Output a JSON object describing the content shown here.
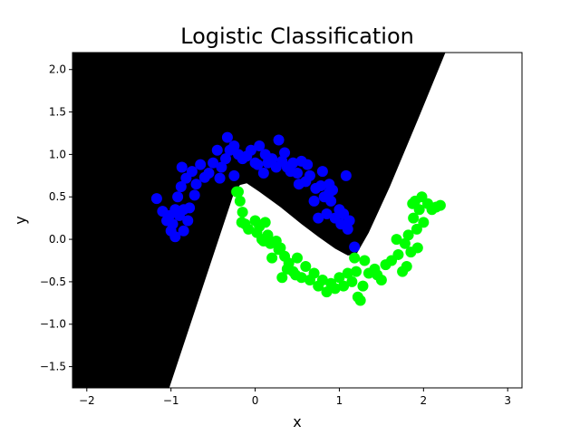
{
  "chart_data": {
    "type": "scatter",
    "title": "Logistic Classification",
    "xlabel": "x",
    "ylabel": "y",
    "xlim": [
      -2.17,
      3.17
    ],
    "ylim": [
      -1.75,
      2.2
    ],
    "x_ticks": [
      "−2",
      "−1",
      "0",
      "1",
      "2",
      "3"
    ],
    "y_ticks": [
      "−1.5",
      "−1.0",
      "−0.5",
      "0.0",
      "0.5",
      "1.0",
      "1.5",
      "2.0"
    ],
    "legend": "none",
    "grid": false,
    "background_regions": {
      "class_0_color": "#000000",
      "class_1_color": "#ffffff",
      "boundary": [
        [
          -1.02,
          -1.75
        ],
        [
          -0.25,
          0.55
        ],
        [
          -0.18,
          0.64
        ],
        [
          -0.1,
          0.66
        ],
        [
          0.05,
          0.56
        ],
        [
          0.3,
          0.38
        ],
        [
          0.55,
          0.18
        ],
        [
          0.75,
          0.03
        ],
        [
          0.95,
          -0.11
        ],
        [
          1.1,
          -0.19
        ],
        [
          1.2,
          -0.18
        ],
        [
          1.35,
          0.08
        ],
        [
          1.6,
          0.62
        ],
        [
          1.95,
          1.45
        ],
        [
          2.26,
          2.2
        ]
      ]
    },
    "series": [
      {
        "color": "#0000ff",
        "points": [
          [
            -1.17,
            0.48
          ],
          [
            -1.1,
            0.33
          ],
          [
            -1.05,
            0.22
          ],
          [
            -0.98,
            0.18
          ],
          [
            -0.95,
            0.03
          ],
          [
            -1.0,
            0.1
          ],
          [
            -0.9,
            0.28
          ],
          [
            -0.85,
            0.1
          ],
          [
            -0.8,
            0.22
          ],
          [
            -0.78,
            0.37
          ],
          [
            -0.85,
            0.35
          ],
          [
            -0.92,
            0.5
          ],
          [
            -0.88,
            0.62
          ],
          [
            -0.82,
            0.72
          ],
          [
            -0.87,
            0.85
          ],
          [
            -0.75,
            0.8
          ],
          [
            -0.7,
            0.65
          ],
          [
            -0.65,
            0.88
          ],
          [
            -0.55,
            0.78
          ],
          [
            -0.5,
            0.9
          ],
          [
            -0.45,
            1.05
          ],
          [
            -0.4,
            0.85
          ],
          [
            -0.35,
            0.95
          ],
          [
            -0.3,
            1.05
          ],
          [
            -0.25,
            1.1
          ],
          [
            -0.33,
            1.2
          ],
          [
            -0.2,
            1.0
          ],
          [
            -0.15,
            0.95
          ],
          [
            -0.25,
            0.75
          ],
          [
            -0.05,
            1.05
          ],
          [
            0.0,
            0.9
          ],
          [
            0.05,
            1.1
          ],
          [
            0.1,
            0.78
          ],
          [
            0.15,
            0.9
          ],
          [
            0.2,
            0.95
          ],
          [
            0.25,
            0.85
          ],
          [
            0.28,
            1.17
          ],
          [
            0.32,
            0.92
          ],
          [
            0.35,
            1.02
          ],
          [
            0.38,
            0.85
          ],
          [
            0.45,
            0.9
          ],
          [
            0.5,
            0.78
          ],
          [
            0.55,
            0.92
          ],
          [
            0.52,
            0.65
          ],
          [
            0.6,
            0.68
          ],
          [
            0.65,
            0.75
          ],
          [
            0.7,
            0.45
          ],
          [
            0.72,
            0.6
          ],
          [
            0.75,
            0.25
          ],
          [
            0.8,
            0.8
          ],
          [
            0.82,
            0.5
          ],
          [
            0.85,
            0.3
          ],
          [
            0.88,
            0.65
          ],
          [
            0.9,
            0.45
          ],
          [
            0.92,
            0.58
          ],
          [
            0.95,
            0.25
          ],
          [
            1.0,
            0.35
          ],
          [
            1.02,
            0.18
          ],
          [
            1.05,
            0.3
          ],
          [
            1.08,
            0.75
          ],
          [
            1.1,
            0.12
          ],
          [
            1.12,
            0.22
          ],
          [
            1.18,
            -0.09
          ],
          [
            0.88,
            0.55
          ],
          [
            0.78,
            0.63
          ],
          [
            0.62,
            0.88
          ],
          [
            0.42,
            0.8
          ],
          [
            0.12,
            1.0
          ],
          [
            -0.1,
            0.98
          ],
          [
            -0.6,
            0.73
          ],
          [
            -0.72,
            0.52
          ],
          [
            -0.95,
            0.35
          ],
          [
            -1.02,
            0.28
          ],
          [
            0.03,
            0.88
          ],
          [
            -0.42,
            0.72
          ]
        ]
      },
      {
        "color": "#00ff00",
        "points": [
          [
            -0.2,
            0.56
          ],
          [
            -0.18,
            0.45
          ],
          [
            -0.15,
            0.32
          ],
          [
            -0.16,
            0.2
          ],
          [
            -0.08,
            0.12
          ],
          [
            0.0,
            0.22
          ],
          [
            0.02,
            0.08
          ],
          [
            0.05,
            0.15
          ],
          [
            0.1,
            -0.02
          ],
          [
            0.12,
            0.2
          ],
          [
            0.15,
            0.05
          ],
          [
            0.18,
            -0.05
          ],
          [
            0.2,
            -0.22
          ],
          [
            0.25,
            -0.02
          ],
          [
            0.3,
            -0.1
          ],
          [
            0.32,
            -0.45
          ],
          [
            0.35,
            -0.2
          ],
          [
            0.38,
            -0.35
          ],
          [
            0.4,
            -0.28
          ],
          [
            0.45,
            -0.38
          ],
          [
            0.5,
            -0.22
          ],
          [
            0.55,
            -0.45
          ],
          [
            0.6,
            -0.32
          ],
          [
            0.65,
            -0.48
          ],
          [
            0.7,
            -0.4
          ],
          [
            0.75,
            -0.55
          ],
          [
            0.8,
            -0.48
          ],
          [
            0.85,
            -0.62
          ],
          [
            0.9,
            -0.52
          ],
          [
            0.95,
            -0.58
          ],
          [
            1.0,
            -0.45
          ],
          [
            1.05,
            -0.55
          ],
          [
            1.1,
            -0.4
          ],
          [
            1.15,
            -0.5
          ],
          [
            1.18,
            -0.22
          ],
          [
            1.2,
            -0.38
          ],
          [
            1.22,
            -0.68
          ],
          [
            1.25,
            -0.72
          ],
          [
            1.28,
            -0.55
          ],
          [
            1.3,
            -0.25
          ],
          [
            1.35,
            -0.4
          ],
          [
            1.42,
            -0.35
          ],
          [
            1.5,
            -0.48
          ],
          [
            1.55,
            -0.3
          ],
          [
            1.62,
            -0.25
          ],
          [
            1.7,
            -0.18
          ],
          [
            1.75,
            -0.38
          ],
          [
            1.78,
            -0.05
          ],
          [
            1.8,
            -0.32
          ],
          [
            1.82,
            0.05
          ],
          [
            1.85,
            -0.15
          ],
          [
            1.88,
            0.25
          ],
          [
            1.9,
            0.45
          ],
          [
            1.92,
            0.12
          ],
          [
            1.95,
            0.35
          ],
          [
            1.98,
            0.5
          ],
          [
            2.0,
            0.2
          ],
          [
            2.05,
            0.42
          ],
          [
            2.1,
            0.35
          ],
          [
            2.15,
            0.38
          ],
          [
            2.2,
            0.4
          ],
          [
            1.87,
            0.42
          ],
          [
            1.68,
            0.0
          ],
          [
            1.93,
            -0.1
          ],
          [
            -0.22,
            0.56
          ],
          [
            0.08,
            0.0
          ],
          [
            0.48,
            -0.42
          ],
          [
            0.28,
            -0.12
          ],
          [
            -0.12,
            0.18
          ],
          [
            1.45,
            -0.42
          ]
        ]
      }
    ]
  }
}
